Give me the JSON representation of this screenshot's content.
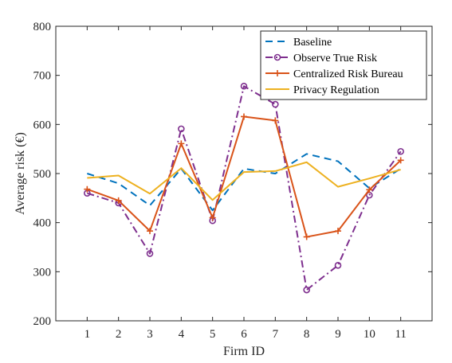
{
  "chart_data": {
    "type": "line",
    "title": "",
    "xlabel": "Firm ID",
    "ylabel": "Average risk (€)",
    "xlim": [
      0,
      12
    ],
    "ylim": [
      200,
      800
    ],
    "x": [
      1,
      2,
      3,
      4,
      5,
      6,
      7,
      8,
      9,
      10,
      11
    ],
    "xticks": [
      "1",
      "2",
      "3",
      "4",
      "5",
      "6",
      "7",
      "8",
      "9",
      "10",
      "11"
    ],
    "yticks": [
      "200",
      "300",
      "400",
      "500",
      "600",
      "700",
      "800"
    ],
    "grid": false,
    "legend_position": "top-right",
    "series": [
      {
        "name": "Baseline",
        "style": "dashed",
        "marker": "none",
        "color": "#0072BD",
        "values": [
          500,
          480,
          435,
          510,
          425,
          510,
          500,
          540,
          525,
          470,
          510
        ]
      },
      {
        "name": "Observe True Risk",
        "style": "dash-dot",
        "marker": "circle",
        "color": "#7E2F8E",
        "values": [
          460,
          440,
          337,
          591,
          404,
          678,
          641,
          263,
          313,
          456,
          545
        ]
      },
      {
        "name": "Centralized Risk Bureau",
        "style": "solid",
        "marker": "plus",
        "color": "#D95319",
        "values": [
          468,
          445,
          383,
          561,
          410,
          616,
          608,
          371,
          383,
          467,
          527
        ]
      },
      {
        "name": "Privacy Regulation",
        "style": "solid",
        "marker": "none",
        "color": "#EDB120",
        "values": [
          491,
          496,
          459,
          511,
          446,
          503,
          505,
          523,
          473,
          490,
          508
        ]
      }
    ]
  }
}
